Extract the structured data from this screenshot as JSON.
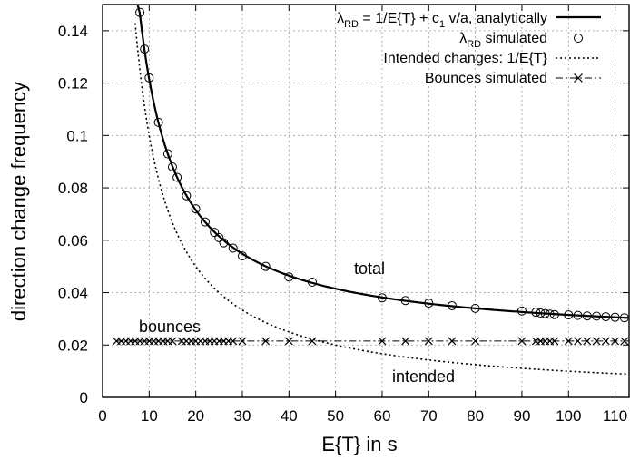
{
  "chart_data": {
    "type": "line",
    "xlabel": "E{T} in s",
    "ylabel": "direction change frequency",
    "xlim": [
      0,
      113
    ],
    "ylim": [
      0,
      0.15
    ],
    "xticks": [
      0,
      10,
      20,
      30,
      40,
      50,
      60,
      70,
      80,
      90,
      100,
      110
    ],
    "yticks": [
      0,
      0.02,
      0.04,
      0.06,
      0.08,
      0.1,
      0.12,
      0.14
    ],
    "ytick_labels": [
      "0",
      "0.02",
      "0.04",
      "0.06",
      "0.08",
      "0.1",
      "0.12",
      "0.14"
    ],
    "grid": true,
    "legend_position": "top-right",
    "legend": [
      {
        "main": "λ",
        "sub": "RD",
        "rest": " = 1/E{T} + c",
        "sub2": "1",
        "rest2": " v/a, analytically"
      },
      {
        "main": "λ",
        "sub": "RD",
        "rest": " simulated"
      },
      {
        "main": "Intended changes: 1/E{T}"
      },
      {
        "main": "Bounces simulated"
      }
    ],
    "annotations": {
      "total": "total",
      "bounces": "bounces",
      "intended": "intended"
    },
    "series": [
      {
        "style": "solid",
        "formula": "1/x + 0.0215",
        "x_range": [
          7.5,
          113
        ]
      },
      {
        "style": "circles",
        "x": [
          8,
          9,
          10,
          12,
          14,
          15,
          16,
          18,
          20,
          22,
          24,
          25,
          26,
          28,
          30,
          35,
          40,
          45,
          60,
          65,
          70,
          75,
          80,
          90,
          93,
          94,
          95,
          96,
          97,
          100,
          102,
          104,
          106,
          108,
          110,
          112
        ],
        "y": [
          0.147,
          0.133,
          0.122,
          0.105,
          0.093,
          0.088,
          0.084,
          0.077,
          0.072,
          0.067,
          0.063,
          0.061,
          0.059,
          0.057,
          0.054,
          0.05,
          0.046,
          0.044,
          0.038,
          0.037,
          0.036,
          0.035,
          0.034,
          0.033,
          0.0325,
          0.0322,
          0.032,
          0.0318,
          0.0316,
          0.0315,
          0.0313,
          0.0311,
          0.031,
          0.0308,
          0.0306,
          0.0304
        ]
      },
      {
        "style": "dotted",
        "formula": "1/x",
        "x_range": [
          7,
          113
        ]
      },
      {
        "style": "dashdot-cross",
        "x": [
          3,
          4,
          5,
          6,
          7,
          8,
          9,
          10,
          11,
          12,
          13,
          14,
          15,
          17,
          18,
          19,
          20,
          21,
          22,
          23,
          24,
          25,
          26,
          27,
          28,
          30,
          35,
          40,
          45,
          60,
          65,
          70,
          75,
          80,
          90,
          93,
          94,
          95,
          96,
          97,
          100,
          102,
          104,
          106,
          108,
          110,
          112
        ],
        "y": [
          0.0215,
          0.0215,
          0.0215,
          0.0215,
          0.0215,
          0.0215,
          0.0215,
          0.0215,
          0.0215,
          0.0215,
          0.0215,
          0.0215,
          0.0215,
          0.0215,
          0.0215,
          0.0215,
          0.0215,
          0.0215,
          0.0215,
          0.0215,
          0.0215,
          0.0215,
          0.0215,
          0.0215,
          0.0215,
          0.0215,
          0.0215,
          0.0215,
          0.0215,
          0.0215,
          0.0215,
          0.0215,
          0.0215,
          0.0215,
          0.0215,
          0.0215,
          0.0215,
          0.0215,
          0.0215,
          0.0215,
          0.0215,
          0.0215,
          0.0215,
          0.0215,
          0.0215,
          0.0215,
          0.0215
        ]
      }
    ]
  }
}
